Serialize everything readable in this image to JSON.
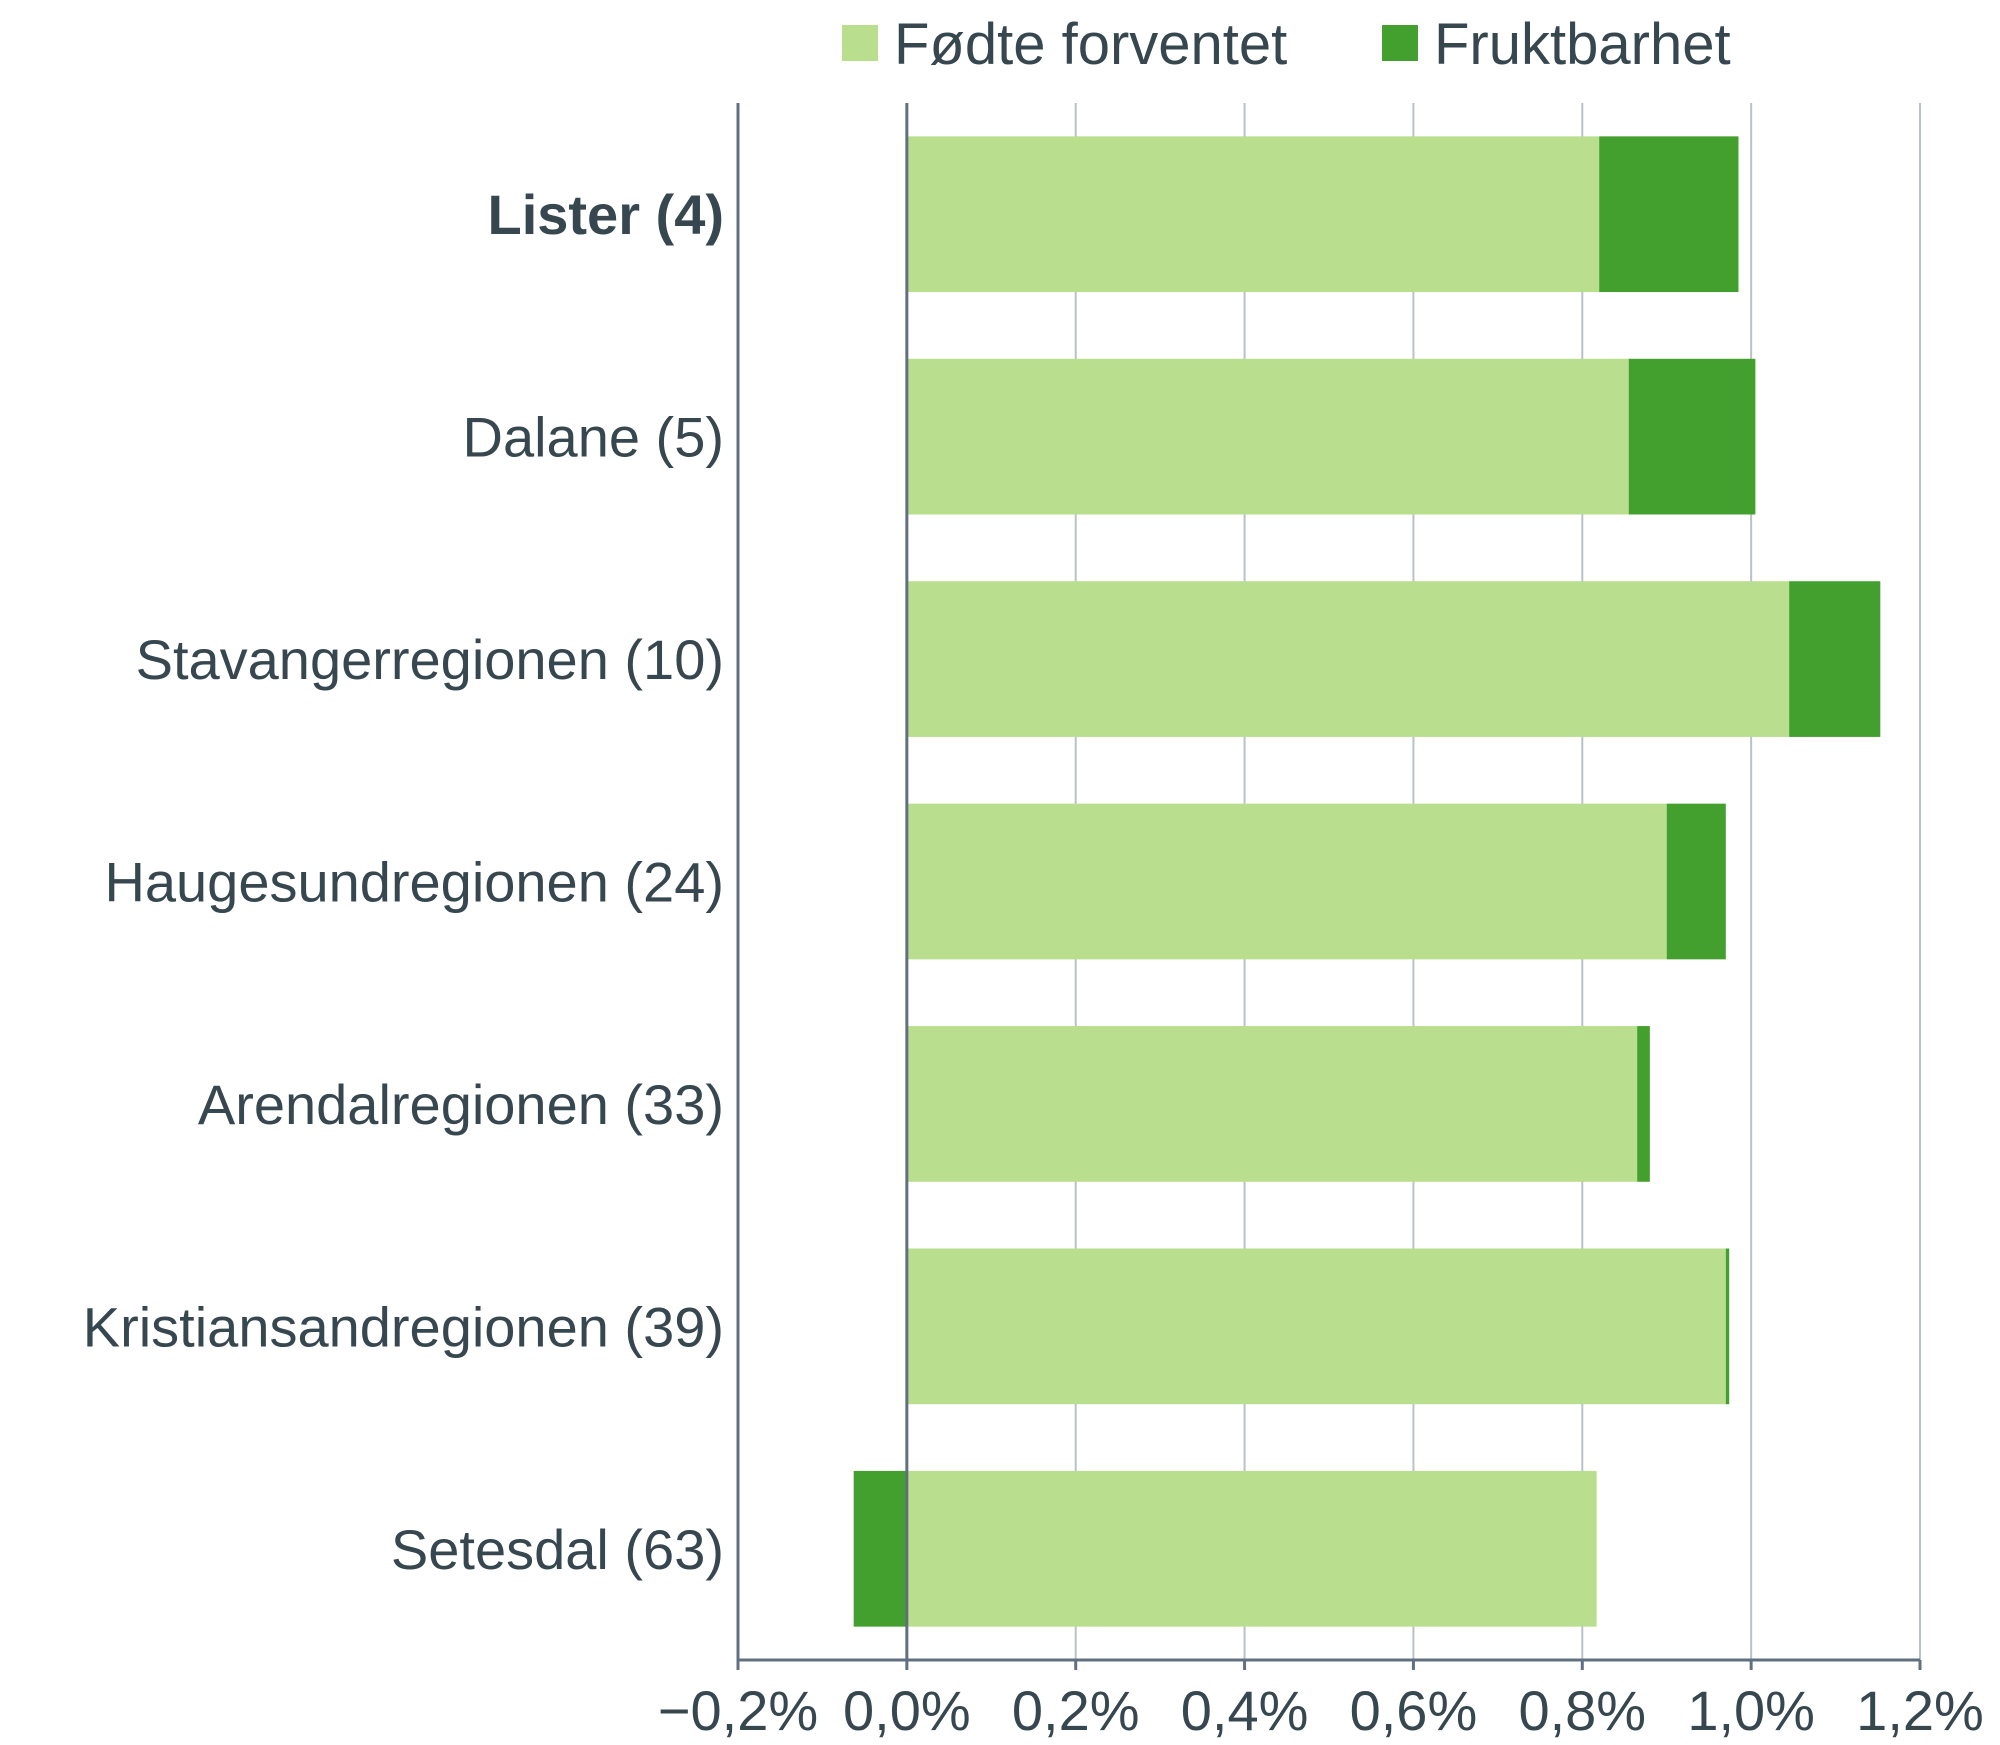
{
  "chart_data": {
    "type": "bar",
    "orientation": "horizontal",
    "stacked": true,
    "categories": [
      "Lister (4)",
      "Dalane (5)",
      "Stavangerregionen (10)",
      "Haugesundregionen (24)",
      "Arendalregionen (33)",
      "Kristiansandregionen (39)",
      "Setesdal (63)"
    ],
    "highlighted_category": "Lister (4)",
    "series": [
      {
        "name": "Fødte forventet",
        "color": "#b9de8e",
        "values": [
          0.82,
          0.855,
          1.045,
          0.9,
          0.865,
          0.97,
          0.817
        ]
      },
      {
        "name": "Fruktbarhet",
        "color": "#43a02e",
        "values": [
          0.165,
          0.15,
          0.108,
          0.07,
          0.015,
          0.004,
          -0.063
        ]
      }
    ],
    "xlim": [
      -0.2,
      1.2
    ],
    "x_ticks": [
      -0.2,
      0.0,
      0.2,
      0.4,
      0.6,
      0.8,
      1.0,
      1.2
    ],
    "x_tick_labels": [
      "−0,2%",
      "0,0%",
      "0,2%",
      "0,4%",
      "0,6%",
      "0,8%",
      "1,0%",
      "1,2%"
    ],
    "grid": true,
    "legend_position": "top",
    "axis_color": "#607080",
    "grid_color": "#b8c2c8"
  }
}
